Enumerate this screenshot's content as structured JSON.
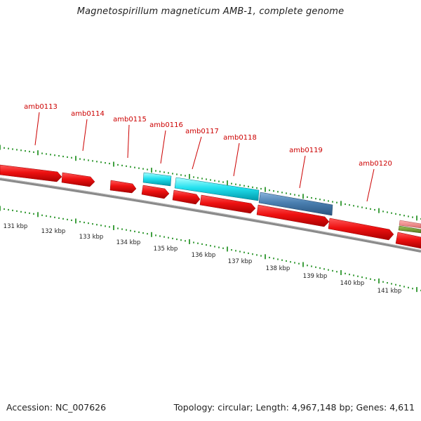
{
  "title": "Magnetospirillum magneticum AMB-1, complete genome",
  "accession": "Accession: NC_007626",
  "summary": "Topology: circular; Length: 4,967,148 bp; Genes: 4,611",
  "colors": {
    "red": "#ee1111",
    "cyan": "#22e0ee",
    "steel": "#4a7fb0",
    "backbone": "#888888",
    "ticks": "#118811",
    "label": "#cc0000"
  },
  "gene_labels": [
    "amb0113",
    "amb0114",
    "amb0115",
    "amb0116",
    "amb0117",
    "amb0118",
    "amb0119",
    "amb0120"
  ],
  "scale_labels": [
    "131 kbp",
    "132 kbp",
    "133 kbp",
    "134 kbp",
    "135 kbp",
    "136 kbp",
    "137 kbp",
    "138 kbp",
    "139 kbp",
    "140 kbp",
    "141 kbp"
  ]
}
